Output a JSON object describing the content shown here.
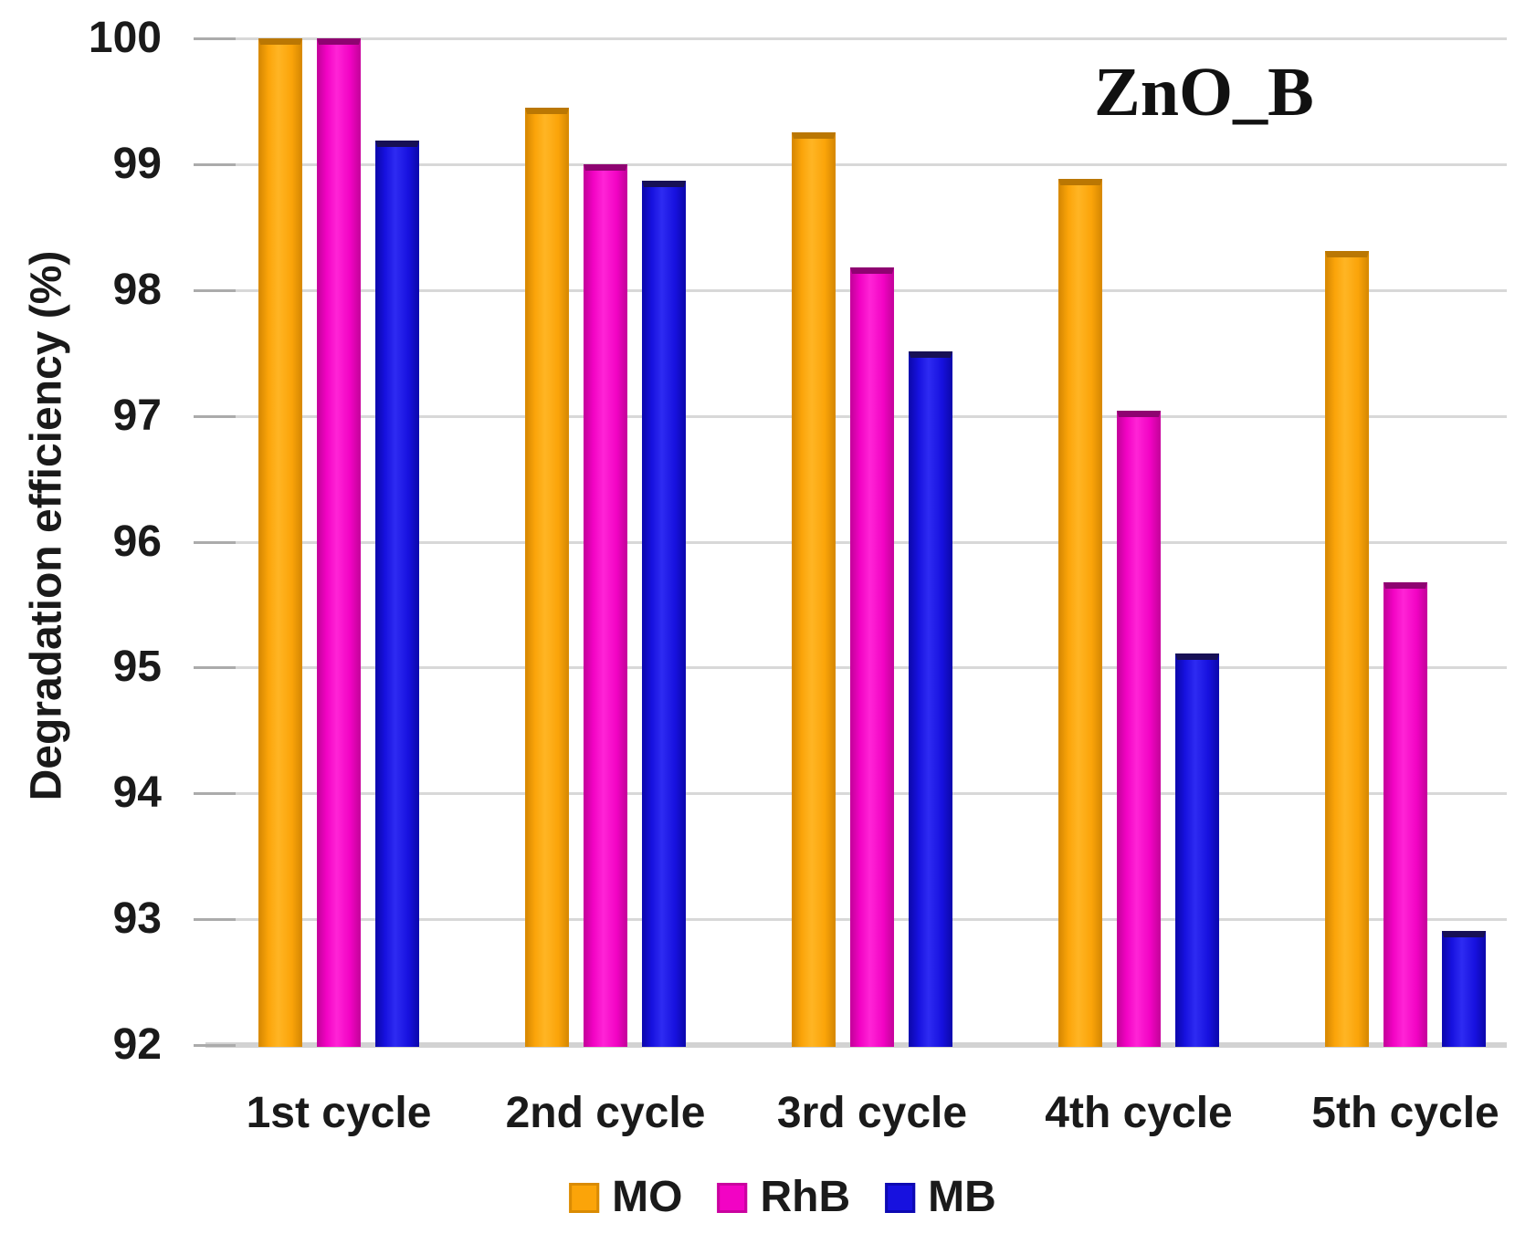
{
  "figure": {
    "title": "ZnO_B"
  },
  "chart_data": {
    "type": "bar",
    "title": "ZnO_B",
    "ylabel": "Degradation efficiency (%)",
    "xlabel": "",
    "ylim": [
      92,
      100
    ],
    "y_ticks": [
      100,
      99,
      98,
      97,
      96,
      95,
      94,
      93,
      92
    ],
    "grid": true,
    "legend_position": "bottom",
    "categories": [
      "1st cycle",
      "2nd cycle",
      "3rd cycle",
      "4th cycle",
      "5th cycle"
    ],
    "series": [
      {
        "name": "MO",
        "color": "#FBA409",
        "highlight": "#FFB524",
        "edge_color": "#DA8B03",
        "top_color": "#BA7703",
        "values": [
          100,
          99.45,
          99.25,
          98.88,
          98.31
        ]
      },
      {
        "name": "RhB",
        "color": "#F203C4",
        "highlight": "#FF24D6",
        "edge_color": "#C9039F",
        "top_color": "#8E0371",
        "values": [
          100,
          99.0,
          98.18,
          97.04,
          95.68
        ]
      },
      {
        "name": "MB",
        "color": "#1711DF",
        "highlight": "#2E2BF2",
        "edge_color": "#0D09B2",
        "top_color": "#171055",
        "values": [
          99.19,
          98.87,
          97.51,
          95.11,
          92.91
        ]
      }
    ]
  }
}
